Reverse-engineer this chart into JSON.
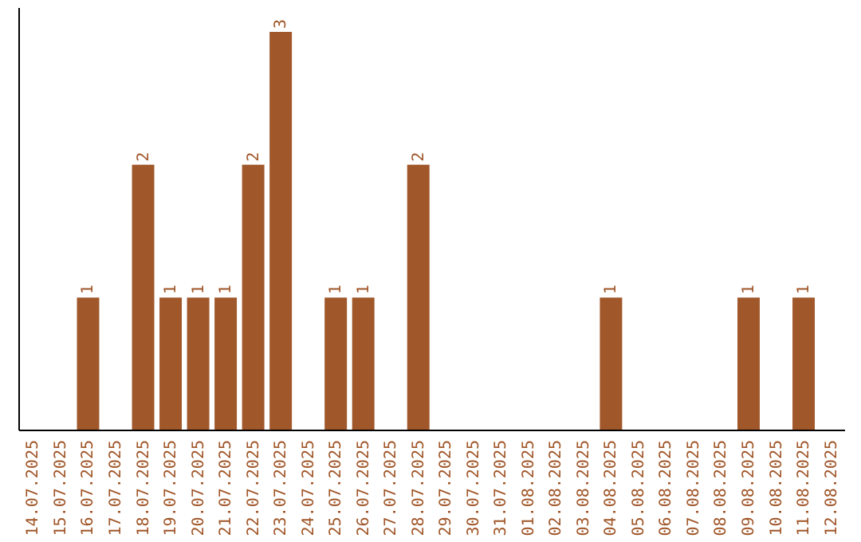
{
  "chart_data": {
    "type": "bar",
    "categories": [
      "14.07.2025",
      "15.07.2025",
      "16.07.2025",
      "17.07.2025",
      "18.07.2025",
      "19.07.2025",
      "20.07.2025",
      "21.07.2025",
      "22.07.2025",
      "23.07.2025",
      "24.07.2025",
      "25.07.2025",
      "26.07.2025",
      "27.07.2025",
      "28.07.2025",
      "29.07.2025",
      "30.07.2025",
      "31.07.2025",
      "01.08.2025",
      "02.08.2025",
      "03.08.2025",
      "04.08.2025",
      "05.08.2025",
      "06.08.2025",
      "07.08.2025",
      "08.08.2025",
      "09.08.2025",
      "10.08.2025",
      "11.08.2025",
      "12.08.2025"
    ],
    "values": [
      0,
      0,
      1,
      0,
      2,
      1,
      1,
      1,
      2,
      3,
      0,
      1,
      1,
      0,
      2,
      0,
      0,
      0,
      0,
      0,
      0,
      1,
      0,
      0,
      0,
      0,
      1,
      0,
      1,
      0
    ],
    "value_labels": [
      null,
      null,
      "1",
      null,
      "2",
      "1",
      "1",
      "1",
      "2",
      "3",
      null,
      "1",
      "1",
      null,
      "2",
      null,
      null,
      null,
      null,
      null,
      null,
      "1",
      null,
      null,
      null,
      null,
      "1",
      null,
      "1",
      null
    ],
    "color": "#a0572a",
    "tick_labels": "x"
  }
}
